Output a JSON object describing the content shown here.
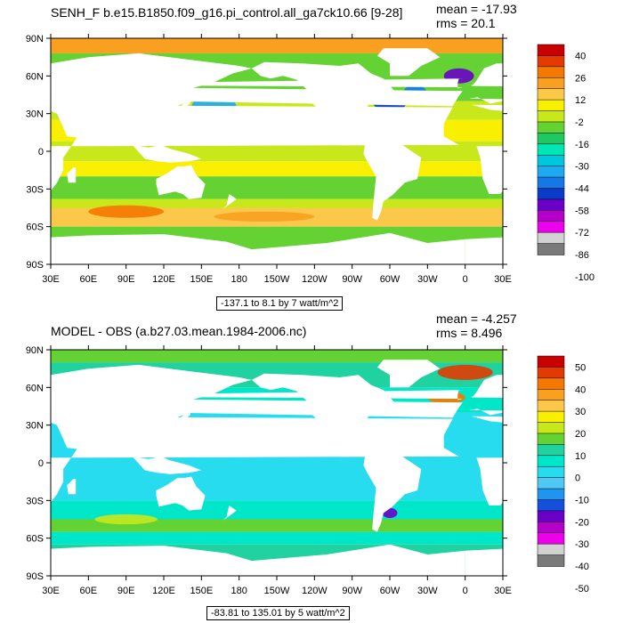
{
  "panels": [
    {
      "title": "SENH_F b.e15.B1850.f09_g16.pi_control.all_ga7ck10.66 [9-28]",
      "mean_text": "mean = -17.93",
      "rms_text": "rms = 20.1",
      "range_text": "-137.1 to 8.1 by 7 watt/m^2",
      "colorbar_labels": [
        "40",
        "26",
        "12",
        "-2",
        "-16",
        "-30",
        "-44",
        "-58",
        "-72",
        "-86",
        "-100"
      ],
      "colorbar_colors": [
        "#c80000",
        "#e23a00",
        "#f57800",
        "#f9a020",
        "#fbc84a",
        "#f8f000",
        "#c8e81c",
        "#64d232",
        "#20c864",
        "#00e6b4",
        "#00c8dc",
        "#1eaaf0",
        "#1478e6",
        "#0a3cc8",
        "#6a00c8",
        "#b400c8",
        "#ee00ee",
        "#d2d2d2",
        "#7a7a7a"
      ],
      "land_color": "#ffffff",
      "ocean_base": "#5ad232"
    },
    {
      "title": "MODEL - OBS (a.b27.03.mean.1984-2006.nc)",
      "mean_text": "mean = -4.257",
      "rms_text": "rms = 8.496",
      "range_text": "-83.81 to 135.01 by 5 watt/m^2",
      "colorbar_labels": [
        "50",
        "40",
        "30",
        "20",
        "10",
        "0",
        "-10",
        "-20",
        "-30",
        "-40",
        "-50"
      ],
      "colorbar_colors": [
        "#c80000",
        "#e23a00",
        "#f57800",
        "#f9a020",
        "#fbc84a",
        "#f8f000",
        "#c8e81c",
        "#64d232",
        "#20d2a0",
        "#00e6c8",
        "#28dcf0",
        "#50c8f5",
        "#1e96f0",
        "#1450dc",
        "#6a00c8",
        "#b400c8",
        "#ee00ee",
        "#d2d2d2",
        "#7a7a7a"
      ],
      "land_color": "#ffffff",
      "ocean_base": "#46d2d2"
    }
  ],
  "axes": {
    "lat_labels": [
      "90N",
      "60N",
      "30N",
      "0",
      "30S",
      "60S",
      "90S"
    ],
    "lon_labels": [
      "30E",
      "60E",
      "90E",
      "120E",
      "150E",
      "180",
      "150W",
      "120W",
      "90W",
      "60W",
      "30W",
      "0",
      "30E"
    ]
  }
}
